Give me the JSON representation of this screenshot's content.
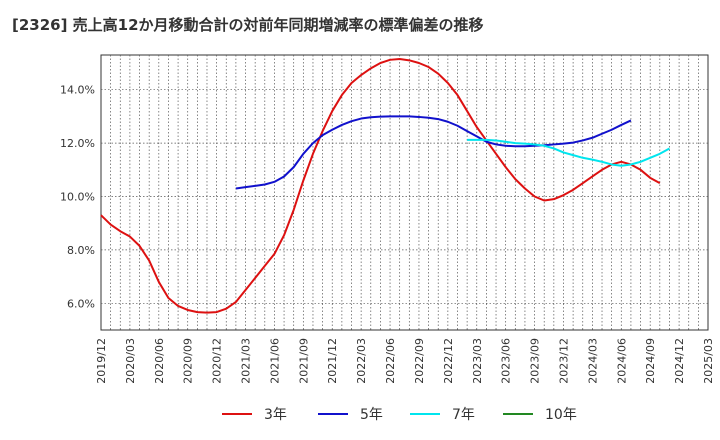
{
  "chart_data": {
    "type": "line",
    "title": "[2326]  売上高12か月移動合計の対前年同期増減率の標準偏差の推移",
    "xlabel": "",
    "ylabel": "",
    "ylim": [
      5.0,
      15.3
    ],
    "yticks": [
      "6.0%",
      "8.0%",
      "10.0%",
      "12.0%",
      "14.0%"
    ],
    "ytick_values": [
      6,
      8,
      10,
      12,
      14
    ],
    "x_ticks": [
      "2019/12",
      "2020/03",
      "2020/06",
      "2020/09",
      "2020/12",
      "2021/03",
      "2021/06",
      "2021/09",
      "2021/12",
      "2022/03",
      "2022/06",
      "2022/09",
      "2022/12",
      "2023/03",
      "2023/06",
      "2023/09",
      "2023/12",
      "2024/03",
      "2024/06",
      "2024/09",
      "2024/12",
      "2025/03"
    ],
    "grid": true,
    "legend_position": "bottom",
    "series": [
      {
        "name": "3年",
        "color": "#dd1111",
        "start_index": 0,
        "values": [
          9.3,
          8.95,
          8.7,
          8.5,
          8.15,
          7.6,
          6.8,
          6.2,
          5.9,
          5.75,
          5.67,
          5.65,
          5.67,
          5.8,
          6.05,
          6.5,
          6.95,
          7.4,
          7.85,
          8.55,
          9.5,
          10.6,
          11.6,
          12.45,
          13.2,
          13.8,
          14.25,
          14.55,
          14.8,
          15.0,
          15.12,
          15.15,
          15.1,
          15.0,
          14.85,
          14.6,
          14.25,
          13.8,
          13.2,
          12.6,
          12.1,
          11.6,
          11.1,
          10.65,
          10.3,
          10.0,
          9.85,
          9.9,
          10.05,
          10.25,
          10.5,
          10.75,
          11.0,
          11.2,
          11.3,
          11.2,
          11.0,
          10.7,
          10.5
        ]
      },
      {
        "name": "5年",
        "color": "#1111cc",
        "start_index": 14,
        "values": [
          10.3,
          10.35,
          10.4,
          10.45,
          10.55,
          10.75,
          11.1,
          11.6,
          12.0,
          12.3,
          12.5,
          12.68,
          12.82,
          12.92,
          12.97,
          12.99,
          13.0,
          13.0,
          13.0,
          12.98,
          12.95,
          12.9,
          12.8,
          12.65,
          12.45,
          12.25,
          12.05,
          11.95,
          11.9,
          11.88,
          11.88,
          11.9,
          11.92,
          11.95,
          11.98,
          12.02,
          12.1,
          12.2,
          12.35,
          12.5,
          12.68,
          12.85
        ]
      },
      {
        "name": "7年",
        "color": "#00e5ee",
        "start_index": 38,
        "values": [
          12.12,
          12.12,
          12.12,
          12.1,
          12.05,
          12.0,
          11.98,
          11.95,
          11.9,
          11.8,
          11.65,
          11.55,
          11.45,
          11.38,
          11.3,
          11.2,
          11.15,
          11.2,
          11.3,
          11.45,
          11.6,
          11.8
        ]
      },
      {
        "name": "10年",
        "color": "#228822",
        "start_index": 0,
        "values": []
      }
    ]
  }
}
